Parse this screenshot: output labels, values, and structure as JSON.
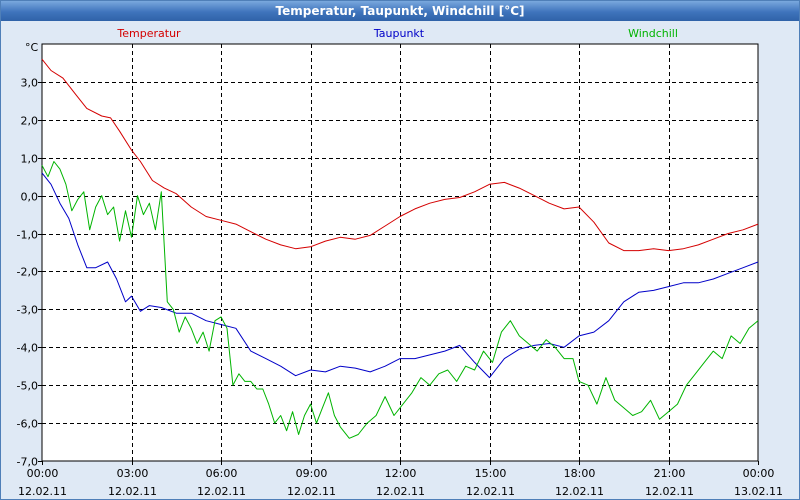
{
  "window": {
    "title": "Temperatur, Taupunkt, Windchill [°C]"
  },
  "colors": {
    "plot_bg": "#ffffff",
    "grid": "#000000",
    "frame": "#000000",
    "window_bg": "#dfe9f5"
  },
  "chart_data": {
    "type": "line",
    "title": "Temperatur, Taupunkt, Windchill [°C]",
    "ylabel": "°C",
    "xlabel": "",
    "xlim": [
      0,
      24
    ],
    "ylim": [
      -7,
      4
    ],
    "grid": true,
    "y_ticks": [
      3,
      2,
      1,
      0,
      -1,
      -2,
      -3,
      -4,
      -5,
      -6,
      -7
    ],
    "y_tick_labels": [
      "3,0",
      "2,0",
      "1,0",
      "0,0",
      "-1,0",
      "-2,0",
      "-3,0",
      "-4,0",
      "-5,0",
      "-6,0",
      "-7,0"
    ],
    "x_ticks": [
      {
        "x": 0,
        "time": "00:00",
        "date": "12.02.11"
      },
      {
        "x": 3,
        "time": "03:00",
        "date": "12.02.11"
      },
      {
        "x": 6,
        "time": "06:00",
        "date": "12.02.11"
      },
      {
        "x": 9,
        "time": "09:00",
        "date": "12.02.11"
      },
      {
        "x": 12,
        "time": "12:00",
        "date": "12.02.11"
      },
      {
        "x": 15,
        "time": "15:00",
        "date": "12.02.11"
      },
      {
        "x": 18,
        "time": "18:00",
        "date": "12.02.11"
      },
      {
        "x": 21,
        "time": "21:00",
        "date": "12.02.11"
      },
      {
        "x": 24,
        "time": "00:00",
        "date": "13.02.11"
      }
    ],
    "series": [
      {
        "name": "Temperatur",
        "color": "#d40000",
        "x": [
          0,
          0.3,
          0.7,
          1.1,
          1.5,
          2.0,
          2.3,
          2.6,
          3.0,
          3.3,
          3.7,
          4.1,
          4.5,
          5.0,
          5.5,
          6.0,
          6.5,
          7.0,
          7.5,
          8.0,
          8.5,
          9.0,
          9.5,
          10.0,
          10.5,
          11.0,
          11.5,
          12.0,
          12.5,
          13.0,
          13.5,
          14.0,
          14.5,
          15.0,
          15.5,
          16.0,
          16.5,
          17.0,
          17.5,
          18.0,
          18.5,
          19.0,
          19.5,
          20.0,
          20.5,
          21.0,
          21.5,
          22.0,
          22.5,
          23.0,
          23.5,
          24.0
        ],
        "values": [
          3.6,
          3.3,
          3.1,
          2.7,
          2.3,
          2.1,
          2.05,
          1.7,
          1.2,
          0.9,
          0.4,
          0.2,
          0.05,
          -0.3,
          -0.55,
          -0.65,
          -0.75,
          -0.95,
          -1.15,
          -1.3,
          -1.4,
          -1.35,
          -1.2,
          -1.1,
          -1.15,
          -1.05,
          -0.8,
          -0.55,
          -0.35,
          -0.2,
          -0.1,
          -0.05,
          0.1,
          0.3,
          0.35,
          0.2,
          0.0,
          -0.2,
          -0.35,
          -0.3,
          -0.7,
          -1.25,
          -1.45,
          -1.45,
          -1.4,
          -1.45,
          -1.4,
          -1.3,
          -1.15,
          -1.0,
          -0.9,
          -0.75
        ]
      },
      {
        "name": "Taupunkt",
        "color": "#0000c8",
        "x": [
          0,
          0.3,
          0.6,
          0.9,
          1.2,
          1.5,
          1.8,
          2.2,
          2.5,
          2.8,
          3.0,
          3.3,
          3.6,
          4.0,
          4.5,
          5.0,
          5.5,
          6.0,
          6.5,
          7.0,
          7.5,
          8.0,
          8.5,
          9.0,
          9.5,
          10.0,
          10.5,
          11.0,
          11.5,
          12.0,
          12.5,
          13.0,
          13.5,
          14.0,
          14.5,
          15.0,
          15.5,
          16.0,
          16.5,
          17.0,
          17.5,
          18.0,
          18.5,
          19.0,
          19.5,
          20.0,
          20.5,
          21.0,
          21.5,
          22.0,
          22.5,
          23.0,
          23.5,
          24.0
        ],
        "values": [
          0.6,
          0.3,
          -0.2,
          -0.6,
          -1.3,
          -1.9,
          -1.9,
          -1.75,
          -2.2,
          -2.8,
          -2.65,
          -3.05,
          -2.9,
          -2.95,
          -3.1,
          -3.1,
          -3.3,
          -3.4,
          -3.5,
          -4.1,
          -4.3,
          -4.5,
          -4.75,
          -4.6,
          -4.65,
          -4.5,
          -4.55,
          -4.65,
          -4.5,
          -4.3,
          -4.3,
          -4.2,
          -4.1,
          -3.95,
          -4.4,
          -4.8,
          -4.3,
          -4.05,
          -3.95,
          -3.9,
          -4.0,
          -3.7,
          -3.6,
          -3.3,
          -2.8,
          -2.55,
          -2.5,
          -2.4,
          -2.3,
          -2.3,
          -2.2,
          -2.05,
          -1.9,
          -1.75
        ]
      },
      {
        "name": "Windchill",
        "color": "#00b400",
        "x": [
          0,
          0.2,
          0.4,
          0.6,
          0.8,
          1.0,
          1.2,
          1.4,
          1.6,
          1.8,
          2.0,
          2.2,
          2.4,
          2.6,
          2.8,
          3.0,
          3.2,
          3.4,
          3.6,
          3.8,
          4.0,
          4.2,
          4.4,
          4.6,
          4.8,
          5.0,
          5.2,
          5.4,
          5.6,
          5.8,
          6.0,
          6.2,
          6.4,
          6.6,
          6.8,
          7.0,
          7.2,
          7.4,
          7.6,
          7.8,
          8.0,
          8.2,
          8.4,
          8.6,
          8.8,
          9.0,
          9.2,
          9.4,
          9.6,
          9.8,
          10.0,
          10.3,
          10.6,
          10.9,
          11.2,
          11.5,
          11.8,
          12.1,
          12.4,
          12.7,
          13.0,
          13.3,
          13.6,
          13.9,
          14.2,
          14.5,
          14.8,
          15.1,
          15.4,
          15.7,
          16.0,
          16.3,
          16.6,
          16.9,
          17.2,
          17.5,
          17.8,
          18.0,
          18.3,
          18.6,
          18.9,
          19.2,
          19.5,
          19.8,
          20.1,
          20.4,
          20.7,
          21.0,
          21.3,
          21.6,
          21.9,
          22.2,
          22.5,
          22.8,
          23.1,
          23.4,
          23.7,
          24.0
        ],
        "values": [
          0.8,
          0.5,
          0.9,
          0.7,
          0.3,
          -0.4,
          -0.1,
          0.1,
          -0.9,
          -0.3,
          0.0,
          -0.5,
          -0.3,
          -1.2,
          -0.4,
          -1.1,
          0.0,
          -0.5,
          -0.2,
          -0.9,
          0.1,
          -2.8,
          -3.0,
          -3.6,
          -3.2,
          -3.5,
          -3.9,
          -3.6,
          -4.1,
          -3.3,
          -3.2,
          -3.5,
          -5.0,
          -4.7,
          -4.9,
          -4.9,
          -5.1,
          -5.1,
          -5.5,
          -6.0,
          -5.8,
          -6.2,
          -5.7,
          -6.3,
          -5.8,
          -5.5,
          -6.0,
          -5.6,
          -5.2,
          -5.8,
          -6.1,
          -6.4,
          -6.3,
          -6.0,
          -5.8,
          -5.3,
          -5.8,
          -5.5,
          -5.2,
          -4.8,
          -5.0,
          -4.7,
          -4.6,
          -4.9,
          -4.5,
          -4.6,
          -4.1,
          -4.4,
          -3.6,
          -3.3,
          -3.7,
          -3.9,
          -4.1,
          -3.8,
          -4.0,
          -4.3,
          -4.3,
          -4.9,
          -5.0,
          -5.5,
          -4.8,
          -5.4,
          -5.6,
          -5.8,
          -5.7,
          -5.4,
          -5.9,
          -5.7,
          -5.5,
          -5.0,
          -4.7,
          -4.4,
          -4.1,
          -4.3,
          -3.7,
          -3.9,
          -3.5,
          -3.3
        ]
      }
    ],
    "legend": [
      "Temperatur",
      "Taupunkt",
      "Windchill"
    ],
    "legend_position": "top"
  }
}
